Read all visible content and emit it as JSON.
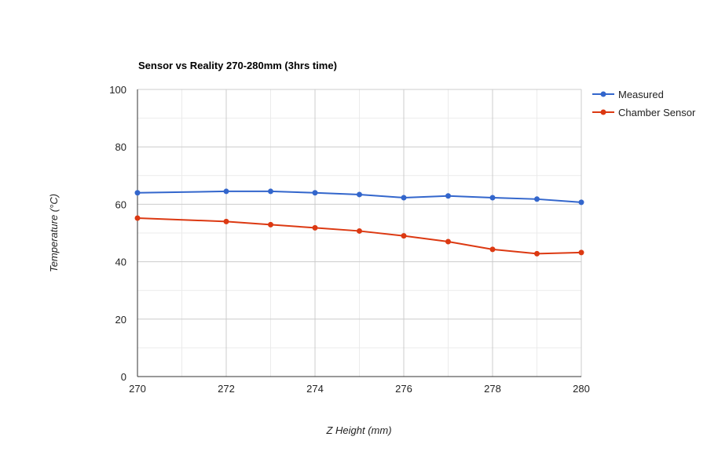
{
  "chart_data": {
    "type": "line",
    "title": "Sensor vs Reality 270-280mm (3hrs time)",
    "xlabel": "Z Height (mm)",
    "ylabel": "Temperature (°C)",
    "x": [
      270,
      272,
      273,
      274,
      275,
      276,
      277,
      278,
      279,
      280
    ],
    "xlim": [
      270,
      280
    ],
    "ylim": [
      0,
      100
    ],
    "x_ticks": [
      270,
      272,
      274,
      276,
      278,
      280
    ],
    "y_ticks": [
      0,
      20,
      40,
      60,
      80,
      100
    ],
    "grid": true,
    "legend_position": "right",
    "series": [
      {
        "name": "Measured",
        "color": "#3366cc",
        "values": [
          64,
          64.5,
          64.5,
          64,
          63.4,
          62.3,
          62.9,
          62.3,
          61.8,
          60.7
        ]
      },
      {
        "name": "Chamber Sensor",
        "color": "#dc3912",
        "values": [
          55.2,
          54,
          52.9,
          51.8,
          50.7,
          49,
          47,
          44.3,
          42.8,
          43.2
        ]
      }
    ]
  }
}
